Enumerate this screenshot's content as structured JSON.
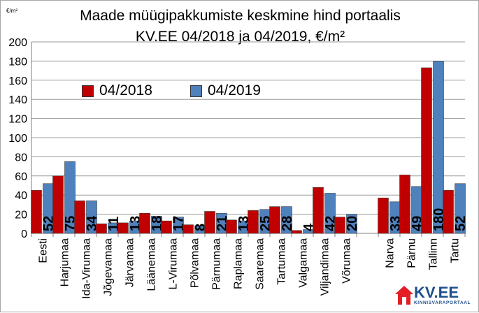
{
  "chart_data": {
    "type": "bar",
    "title_line1": "Maade müügipakkumiste keskmine hind portaalis",
    "title_line2": "KV.EE 04/2018 ja 04/2019, €/m²",
    "unit": "€/m²",
    "ylim": [
      0,
      200
    ],
    "yticks": [
      "0",
      "20",
      "40",
      "60",
      "80",
      "100",
      "120",
      "140",
      "160",
      "180",
      "200"
    ],
    "grid": true,
    "legend_position": "top-left",
    "categories": [
      "Eesti",
      "Harjumaa",
      "Ida-Virumaa",
      "Jõgevamaa",
      "Järvamaa",
      "Läänemaa",
      "L-Virumaa",
      "Põlvamaa",
      "Pärnumaa",
      "Raplamaa",
      "Saaremaa",
      "Tartumaa",
      "Valgamaa",
      "Viljandimaa",
      "Võrumaa",
      "",
      "Narva",
      "Pärnu",
      "Tallinn",
      "Tartu"
    ],
    "series": [
      {
        "name": "04/2018",
        "color": "#c00000",
        "values": [
          45,
          60,
          34,
          10,
          11,
          21,
          13,
          9,
          23,
          14,
          24,
          28,
          3,
          48,
          17,
          null,
          37,
          61,
          173,
          45
        ]
      },
      {
        "name": "04/2019",
        "color": "#4f81bd",
        "values": [
          52,
          75,
          34,
          11,
          13,
          18,
          17,
          8,
          21,
          13,
          25,
          28,
          4,
          42,
          20,
          null,
          33,
          49,
          180,
          52
        ]
      }
    ],
    "data_labels": [
      "52",
      "75",
      "34",
      "11",
      "13",
      "18",
      "17",
      "8",
      "21",
      "13",
      "25",
      "28",
      "4",
      "42",
      "20",
      "",
      "33",
      "49",
      "180",
      "52"
    ]
  },
  "logo": {
    "name": "KV.EE",
    "tagline": "KINNISVARAPORTAAL",
    "house_color": "#e31e24",
    "text_color": "#1f4e8c"
  }
}
